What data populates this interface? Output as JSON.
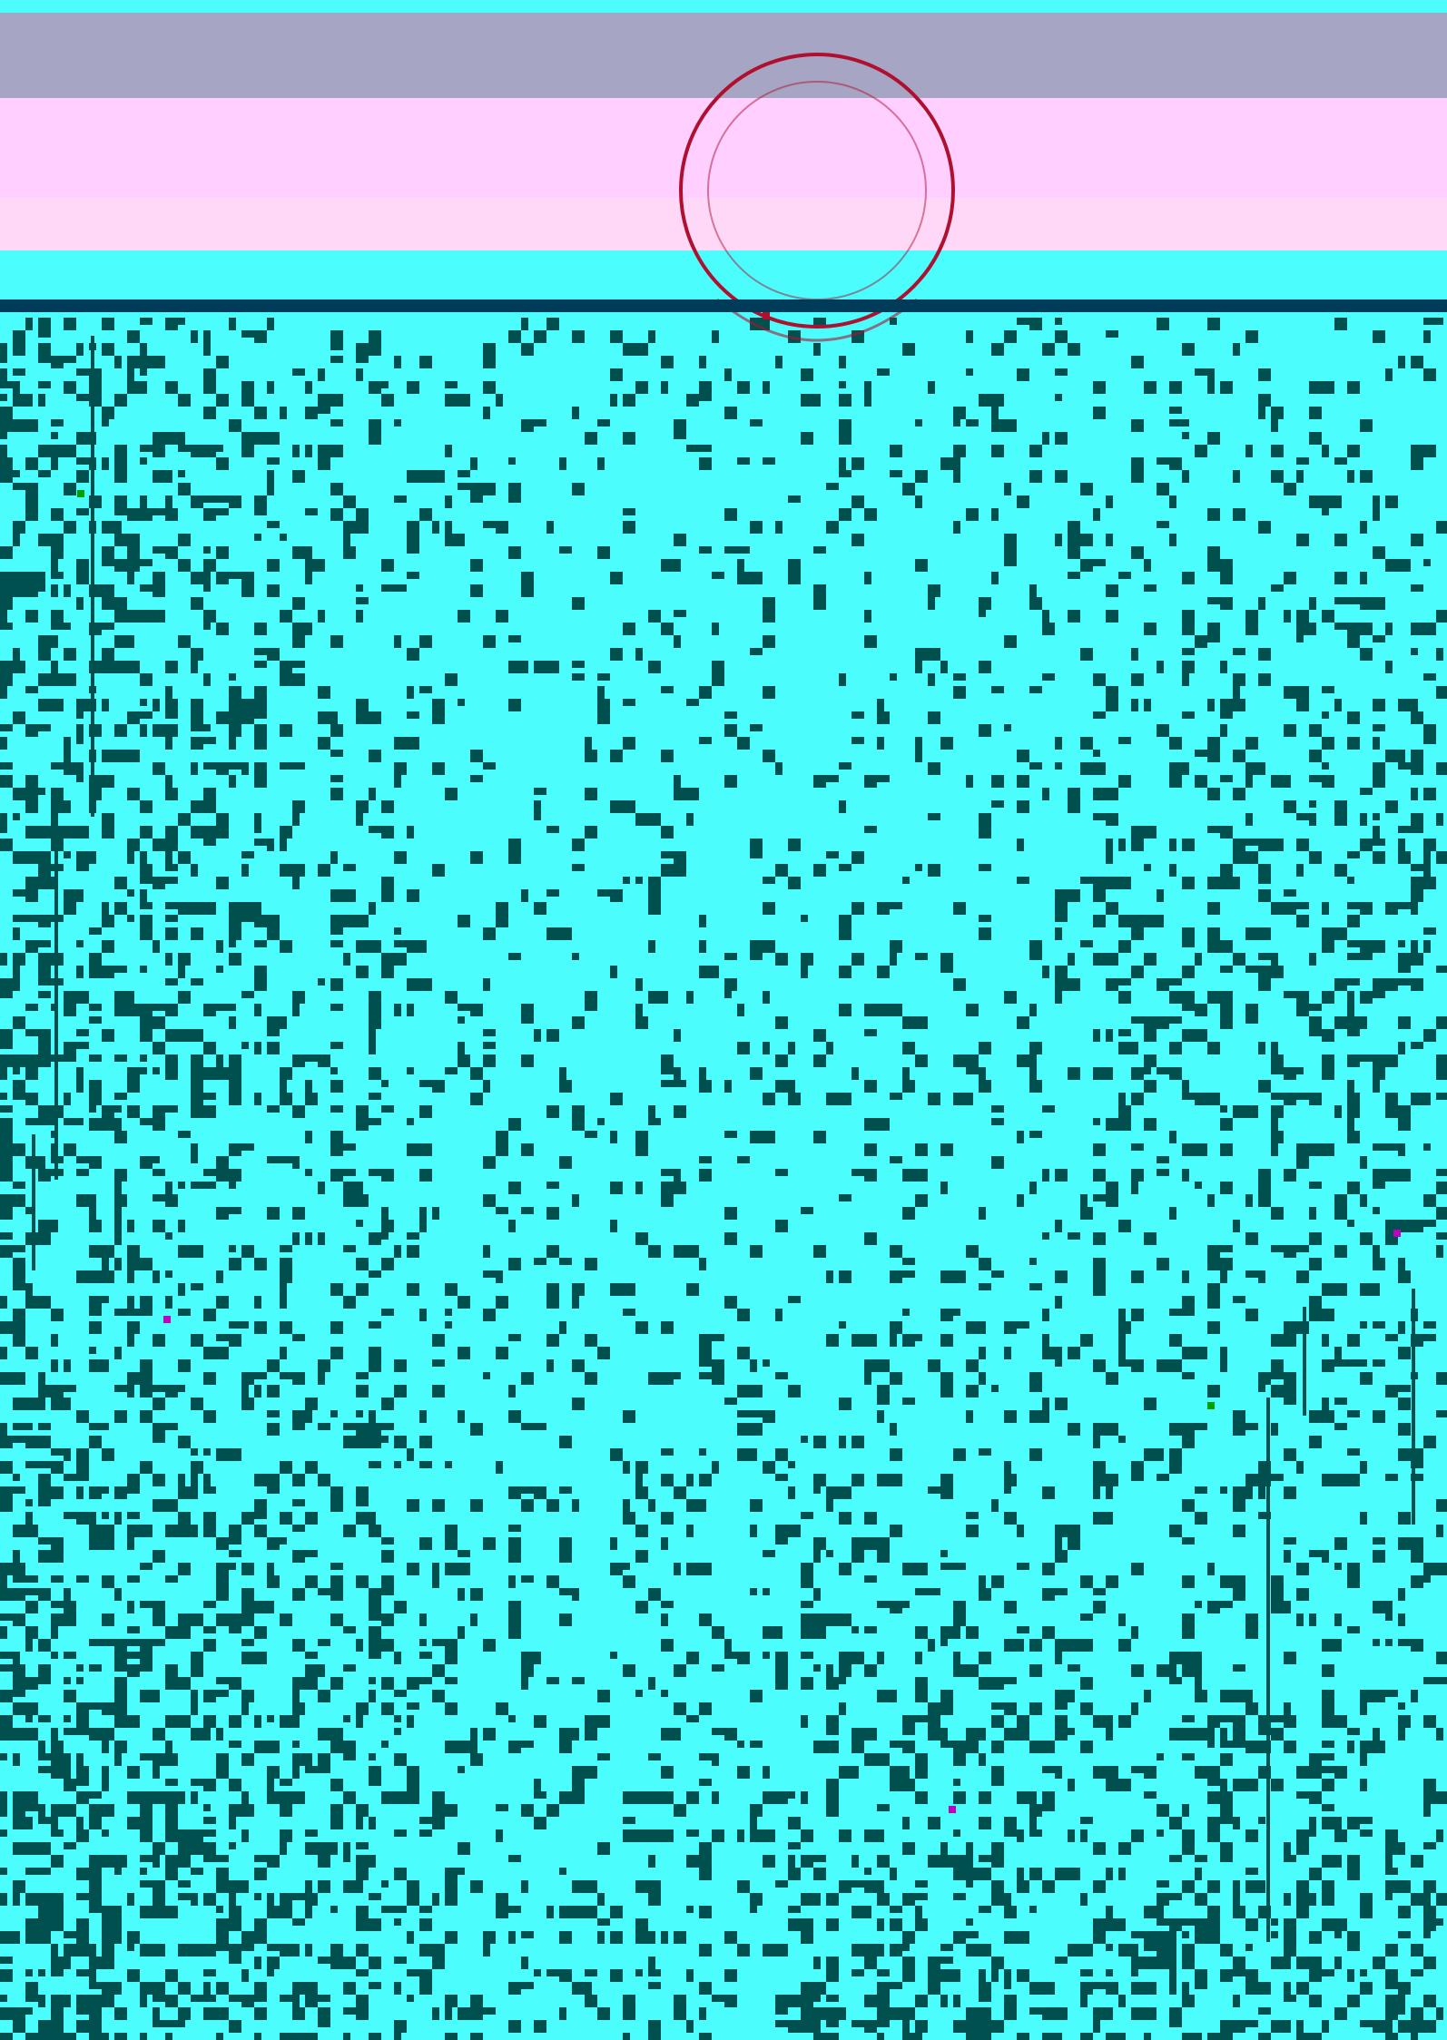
{
  "image": {
    "kind": "glitched scan",
    "colors": {
      "background_cyan": "#4cfdfd",
      "noise_teal": "#005050",
      "band_pink": "#ffd0ff",
      "band_grey": "#a6a6c4",
      "stamp_red": "#b01030",
      "line_navy": "#003c5a",
      "accent_green": "#00a000",
      "accent_magenta": "#c000c0"
    }
  }
}
